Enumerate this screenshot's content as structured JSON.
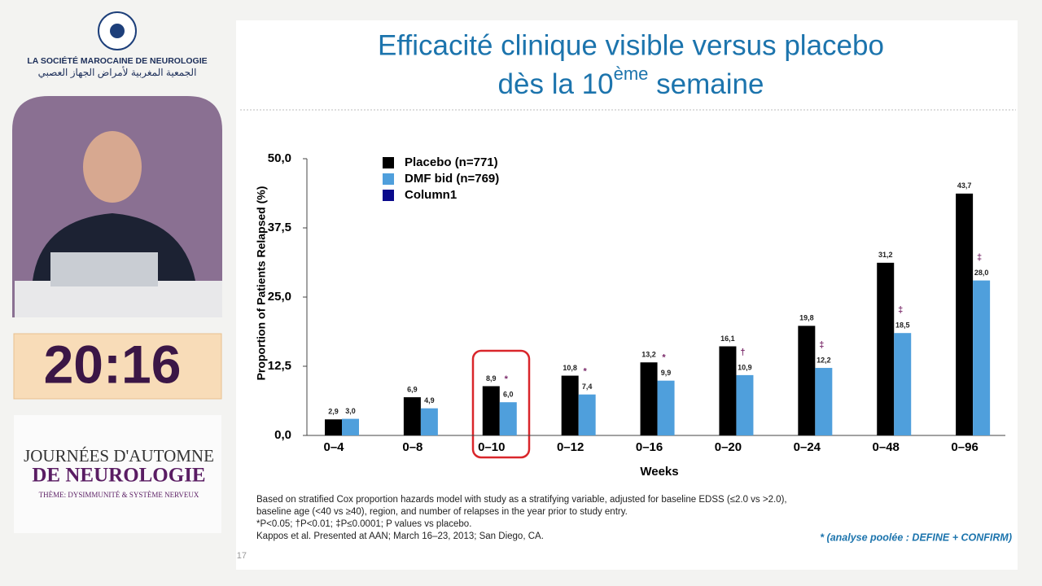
{
  "sidebar": {
    "society_name": "LA SOCIÉTÉ MAROCAINE DE NEUROLOGIE",
    "society_name_arabic": "الجمعية المغربية لأمراض الجهاز العصبي",
    "timer": "20:16",
    "event_line1": "JOURNÉES D'AUTOMNE",
    "event_line2": "DE NEUROLOGIE",
    "event_theme": "THÈME: DYSIMMUNITÉ & SYSTÈME NERVEUX"
  },
  "slide": {
    "title_line1": "Efficacité clinique visible versus placebo",
    "title_line2_start": "dès la 10",
    "title_line2_sup": "ème",
    "title_line2_end": " semaine",
    "footnotes": [
      "Based on stratified Cox proportion hazards model with study as a stratifying variable, adjusted for baseline EDSS (≤2.0 vs >2.0),",
      "baseline age (<40 vs ≥40), region, and number of relapses in the year prior to study entry.",
      "*P<0.05; †P<0.01; ‡P≤0.0001; P values vs placebo.",
      "Kappos et al. Presented at AAN; March 16–23, 2013; San Diego, CA."
    ],
    "pooled_note": "* (analyse poolée : DEFINE + CONFIRM)",
    "page_number": "17"
  },
  "chart_data": {
    "type": "bar",
    "x_label": "Weeks",
    "y_label": "Proportion of Patients Relapsed (%)",
    "categories": [
      "0–4",
      "0–8",
      "0–10",
      "0–12",
      "0–16",
      "0–20",
      "0–24",
      "0–48",
      "0–96"
    ],
    "series": [
      {
        "name": "Placebo (n=771)",
        "color": "#000000",
        "values": [
          2.9,
          6.9,
          8.9,
          10.8,
          13.2,
          16.1,
          19.8,
          31.2,
          43.7
        ],
        "value_labels": [
          "2,9",
          "6,9",
          "8,9",
          "10,8",
          "13,2",
          "16,1",
          "19,8",
          "31,2",
          "43,7"
        ]
      },
      {
        "name": "DMF bid (n=769)",
        "color": "#4f9fdc",
        "values": [
          3.0,
          4.9,
          6.0,
          7.4,
          9.9,
          10.9,
          12.2,
          18.5,
          28.0
        ],
        "value_labels": [
          "3,0",
          "4,9",
          "6,0",
          "7,4",
          "9,9",
          "10,9",
          "12,2",
          "18,5",
          "28,0"
        ]
      },
      {
        "name": "Column1",
        "color": "#0a0a8c",
        "values": [
          null,
          null,
          null,
          null,
          null,
          null,
          null,
          null,
          null
        ]
      }
    ],
    "significance": [
      null,
      null,
      "*",
      "*",
      "*",
      "†",
      "‡",
      "‡",
      "‡"
    ],
    "ylim": [
      0,
      50
    ],
    "yticks": [
      {
        "value": 0,
        "label": "0,0"
      },
      {
        "value": 12.5,
        "label": "12,5"
      },
      {
        "value": 25,
        "label": "25,0"
      },
      {
        "value": 37.5,
        "label": "37,5"
      },
      {
        "value": 50,
        "label": "50,0"
      }
    ],
    "legend": "top-left"
  }
}
